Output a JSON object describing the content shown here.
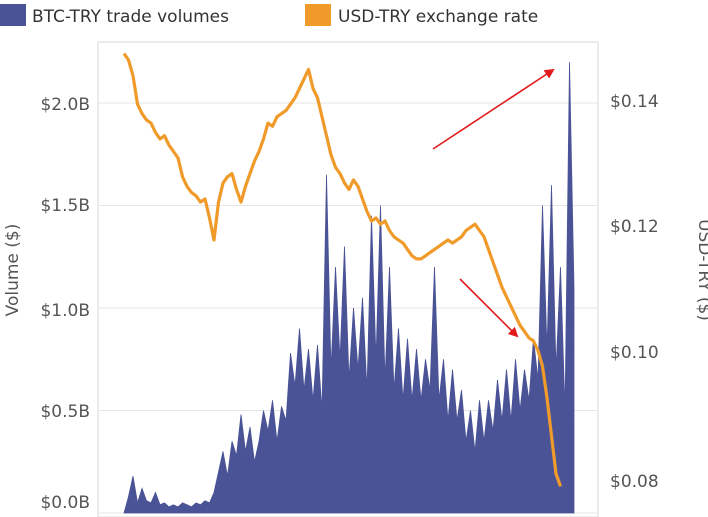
{
  "colors": {
    "volume": "#4b5397",
    "rate": "#f09a2a",
    "arrow": "#e11b1b",
    "grid": "#e6e6e6",
    "text": "#555555"
  },
  "legend": [
    {
      "label": "BTC-TRY trade volumes",
      "color": "#4b5397"
    },
    {
      "label": "USD-TRY exchange rate",
      "color": "#f09a2a"
    }
  ],
  "chart_data": {
    "type": "area",
    "ylabel_left": "Volume ($)",
    "ylabel_right": "USD-TRY ($)",
    "y_left_ticks": [
      "$0.0B",
      "$0.5B",
      "$1.0B",
      "$1.5B",
      "$2.0B"
    ],
    "y_left_range": [
      0,
      2.25
    ],
    "y_right_ticks": [
      "$0.08",
      "$0.10",
      "$0.12",
      "$0.14"
    ],
    "y_right_range": [
      0.0765,
      0.1485
    ],
    "grid": true,
    "legend_position": "top-left",
    "x_index_range": [
      0,
      100
    ],
    "series": [
      {
        "name": "BTC-TRY trade volumes",
        "kind": "area",
        "axis": "left",
        "unit": "billion USD",
        "points": [
          [
            0,
            0
          ],
          [
            1,
            0.08
          ],
          [
            2,
            0.18
          ],
          [
            3,
            0.05
          ],
          [
            4,
            0.12
          ],
          [
            5,
            0.06
          ],
          [
            6,
            0.05
          ],
          [
            7,
            0.1
          ],
          [
            8,
            0.04
          ],
          [
            9,
            0.05
          ],
          [
            10,
            0.03
          ],
          [
            11,
            0.04
          ],
          [
            12,
            0.03
          ],
          [
            13,
            0.05
          ],
          [
            14,
            0.04
          ],
          [
            15,
            0.03
          ],
          [
            16,
            0.05
          ],
          [
            17,
            0.04
          ],
          [
            18,
            0.06
          ],
          [
            19,
            0.05
          ],
          [
            20,
            0.1
          ],
          [
            21,
            0.2
          ],
          [
            22,
            0.3
          ],
          [
            23,
            0.18
          ],
          [
            24,
            0.35
          ],
          [
            25,
            0.28
          ],
          [
            26,
            0.48
          ],
          [
            27,
            0.3
          ],
          [
            28,
            0.42
          ],
          [
            29,
            0.25
          ],
          [
            30,
            0.35
          ],
          [
            31,
            0.5
          ],
          [
            32,
            0.4
          ],
          [
            33,
            0.55
          ],
          [
            34,
            0.35
          ],
          [
            35,
            0.52
          ],
          [
            36,
            0.45
          ],
          [
            37,
            0.78
          ],
          [
            38,
            0.62
          ],
          [
            39,
            0.9
          ],
          [
            40,
            0.6
          ],
          [
            41,
            0.8
          ],
          [
            42,
            0.55
          ],
          [
            43,
            0.82
          ],
          [
            44,
            0.5
          ],
          [
            45,
            1.65
          ],
          [
            46,
            0.7
          ],
          [
            47,
            1.2
          ],
          [
            48,
            0.75
          ],
          [
            49,
            1.3
          ],
          [
            50,
            0.65
          ],
          [
            51,
            1.0
          ],
          [
            52,
            0.7
          ],
          [
            53,
            1.05
          ],
          [
            54,
            0.6
          ],
          [
            55,
            1.45
          ],
          [
            56,
            0.75
          ],
          [
            57,
            1.5
          ],
          [
            58,
            0.65
          ],
          [
            59,
            1.2
          ],
          [
            60,
            0.6
          ],
          [
            61,
            0.9
          ],
          [
            62,
            0.55
          ],
          [
            63,
            0.85
          ],
          [
            64,
            0.55
          ],
          [
            65,
            0.8
          ],
          [
            66,
            0.55
          ],
          [
            67,
            0.75
          ],
          [
            68,
            0.6
          ],
          [
            69,
            1.2
          ],
          [
            70,
            0.55
          ],
          [
            71,
            0.75
          ],
          [
            72,
            0.45
          ],
          [
            73,
            0.7
          ],
          [
            74,
            0.45
          ],
          [
            75,
            0.6
          ],
          [
            76,
            0.35
          ],
          [
            77,
            0.5
          ],
          [
            78,
            0.3
          ],
          [
            79,
            0.55
          ],
          [
            80,
            0.35
          ],
          [
            81,
            0.55
          ],
          [
            82,
            0.4
          ],
          [
            83,
            0.65
          ],
          [
            84,
            0.45
          ],
          [
            85,
            0.7
          ],
          [
            86,
            0.45
          ],
          [
            87,
            0.75
          ],
          [
            88,
            0.5
          ],
          [
            89,
            0.7
          ],
          [
            90,
            0.55
          ],
          [
            91,
            0.85
          ],
          [
            92,
            0.65
          ],
          [
            93,
            1.5
          ],
          [
            94,
            0.8
          ],
          [
            95,
            1.6
          ],
          [
            96,
            0.7
          ],
          [
            97,
            1.2
          ],
          [
            98,
            0.5
          ],
          [
            99,
            2.2
          ],
          [
            100,
            1.1
          ]
        ]
      },
      {
        "name": "USD-TRY exchange rate",
        "kind": "line",
        "axis": "right",
        "unit": "USD",
        "points": [
          [
            0,
            0.1475
          ],
          [
            1,
            0.1465
          ],
          [
            2,
            0.144
          ],
          [
            3,
            0.1395
          ],
          [
            4,
            0.138
          ],
          [
            5,
            0.137
          ],
          [
            6,
            0.1365
          ],
          [
            7,
            0.135
          ],
          [
            8,
            0.134
          ],
          [
            9,
            0.1345
          ],
          [
            10,
            0.133
          ],
          [
            11,
            0.132
          ],
          [
            12,
            0.131
          ],
          [
            13,
            0.128
          ],
          [
            14,
            0.1265
          ],
          [
            15,
            0.1255
          ],
          [
            16,
            0.125
          ],
          [
            17,
            0.124
          ],
          [
            18,
            0.1245
          ],
          [
            19,
            0.1215
          ],
          [
            20,
            0.118
          ],
          [
            21,
            0.124
          ],
          [
            22,
            0.127
          ],
          [
            23,
            0.128
          ],
          [
            24,
            0.1285
          ],
          [
            25,
            0.126
          ],
          [
            26,
            0.124
          ],
          [
            27,
            0.1265
          ],
          [
            28,
            0.1285
          ],
          [
            29,
            0.1305
          ],
          [
            30,
            0.132
          ],
          [
            31,
            0.134
          ],
          [
            32,
            0.1365
          ],
          [
            33,
            0.136
          ],
          [
            34,
            0.1375
          ],
          [
            35,
            0.138
          ],
          [
            36,
            0.1385
          ],
          [
            37,
            0.1395
          ],
          [
            38,
            0.1405
          ],
          [
            39,
            0.142
          ],
          [
            40,
            0.1435
          ],
          [
            41,
            0.145
          ],
          [
            42,
            0.142
          ],
          [
            43,
            0.1405
          ],
          [
            44,
            0.1375
          ],
          [
            45,
            0.1345
          ],
          [
            46,
            0.1315
          ],
          [
            47,
            0.1295
          ],
          [
            48,
            0.1285
          ],
          [
            49,
            0.127
          ],
          [
            50,
            0.126
          ],
          [
            51,
            0.1275
          ],
          [
            52,
            0.1265
          ],
          [
            53,
            0.1245
          ],
          [
            54,
            0.1225
          ],
          [
            55,
            0.121
          ],
          [
            56,
            0.1215
          ],
          [
            57,
            0.1205
          ],
          [
            58,
            0.121
          ],
          [
            59,
            0.1195
          ],
          [
            60,
            0.1185
          ],
          [
            61,
            0.118
          ],
          [
            62,
            0.1175
          ],
          [
            63,
            0.1165
          ],
          [
            64,
            0.1155
          ],
          [
            65,
            0.115
          ],
          [
            66,
            0.115
          ],
          [
            67,
            0.1155
          ],
          [
            68,
            0.116
          ],
          [
            69,
            0.1165
          ],
          [
            70,
            0.117
          ],
          [
            71,
            0.1175
          ],
          [
            72,
            0.118
          ],
          [
            73,
            0.1175
          ],
          [
            74,
            0.118
          ],
          [
            75,
            0.1185
          ],
          [
            76,
            0.1195
          ],
          [
            77,
            0.12
          ],
          [
            78,
            0.1205
          ],
          [
            79,
            0.1195
          ],
          [
            80,
            0.1185
          ],
          [
            81,
            0.1165
          ],
          [
            82,
            0.1145
          ],
          [
            83,
            0.1125
          ],
          [
            84,
            0.1105
          ],
          [
            85,
            0.109
          ],
          [
            86,
            0.1075
          ],
          [
            87,
            0.106
          ],
          [
            88,
            0.1045
          ],
          [
            89,
            0.1035
          ],
          [
            90,
            0.1025
          ],
          [
            91,
            0.102
          ],
          [
            92,
            0.1005
          ],
          [
            93,
            0.098
          ],
          [
            94,
            0.093
          ],
          [
            95,
            0.087
          ],
          [
            96,
            0.081
          ],
          [
            97,
            0.079
          ]
        ]
      }
    ],
    "annotations": [
      {
        "type": "arrow",
        "direction": "up-right",
        "meaning": "rising volume"
      },
      {
        "type": "arrow",
        "direction": "down-right",
        "meaning": "falling exchange rate"
      }
    ]
  }
}
